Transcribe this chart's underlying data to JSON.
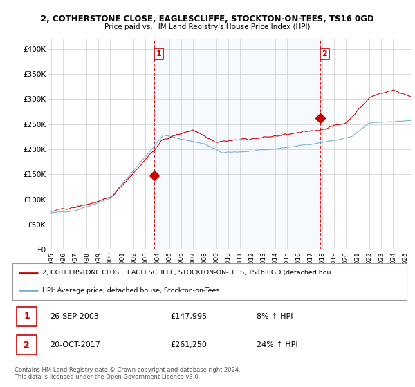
{
  "title1": "2, COTHERSTONE CLOSE, EAGLESCLIFFE, STOCKTON-ON-TEES, TS16 0GD",
  "title2": "Price paid vs. HM Land Registry's House Price Index (HPI)",
  "ylabel_ticks": [
    "£0",
    "£50K",
    "£100K",
    "£150K",
    "£200K",
    "£250K",
    "£300K",
    "£350K",
    "£400K"
  ],
  "ytick_values": [
    0,
    50000,
    100000,
    150000,
    200000,
    250000,
    300000,
    350000,
    400000
  ],
  "ylim": [
    0,
    420000
  ],
  "xlim_start": 1994.7,
  "xlim_end": 2025.5,
  "xticks": [
    1995,
    1996,
    1997,
    1998,
    1999,
    2000,
    2001,
    2002,
    2003,
    2004,
    2005,
    2006,
    2007,
    2008,
    2009,
    2010,
    2011,
    2012,
    2013,
    2014,
    2015,
    2016,
    2017,
    2018,
    2019,
    2020,
    2021,
    2022,
    2023,
    2024,
    2025
  ],
  "sale1_x": 2003.74,
  "sale1_y": 147995,
  "sale2_x": 2017.8,
  "sale2_y": 261250,
  "sale1_date": "26-SEP-2003",
  "sale1_price": "£147,995",
  "sale1_hpi": "8% ↑ HPI",
  "sale2_date": "20-OCT-2017",
  "sale2_price": "£261,250",
  "sale2_hpi": "24% ↑ HPI",
  "hpi_line_color": "#7bafd4",
  "price_line_color": "#cc0000",
  "vline_color": "#cc0000",
  "shade_color": "#ddeeff",
  "dot_color": "#cc0000",
  "legend_label1": "2, COTHERSTONE CLOSE, EAGLESCLIFFE, STOCKTON-ON-TEES, TS16 0GD (detached hou",
  "legend_label2": "HPI: Average price, detached house, Stockton-on-Tees",
  "footer1": "Contains HM Land Registry data © Crown copyright and database right 2024.",
  "footer2": "This data is licensed under the Open Government Licence v3.0.",
  "bg_color": "#ffffff",
  "plot_bg_color": "#ffffff",
  "grid_color": "#cccccc"
}
